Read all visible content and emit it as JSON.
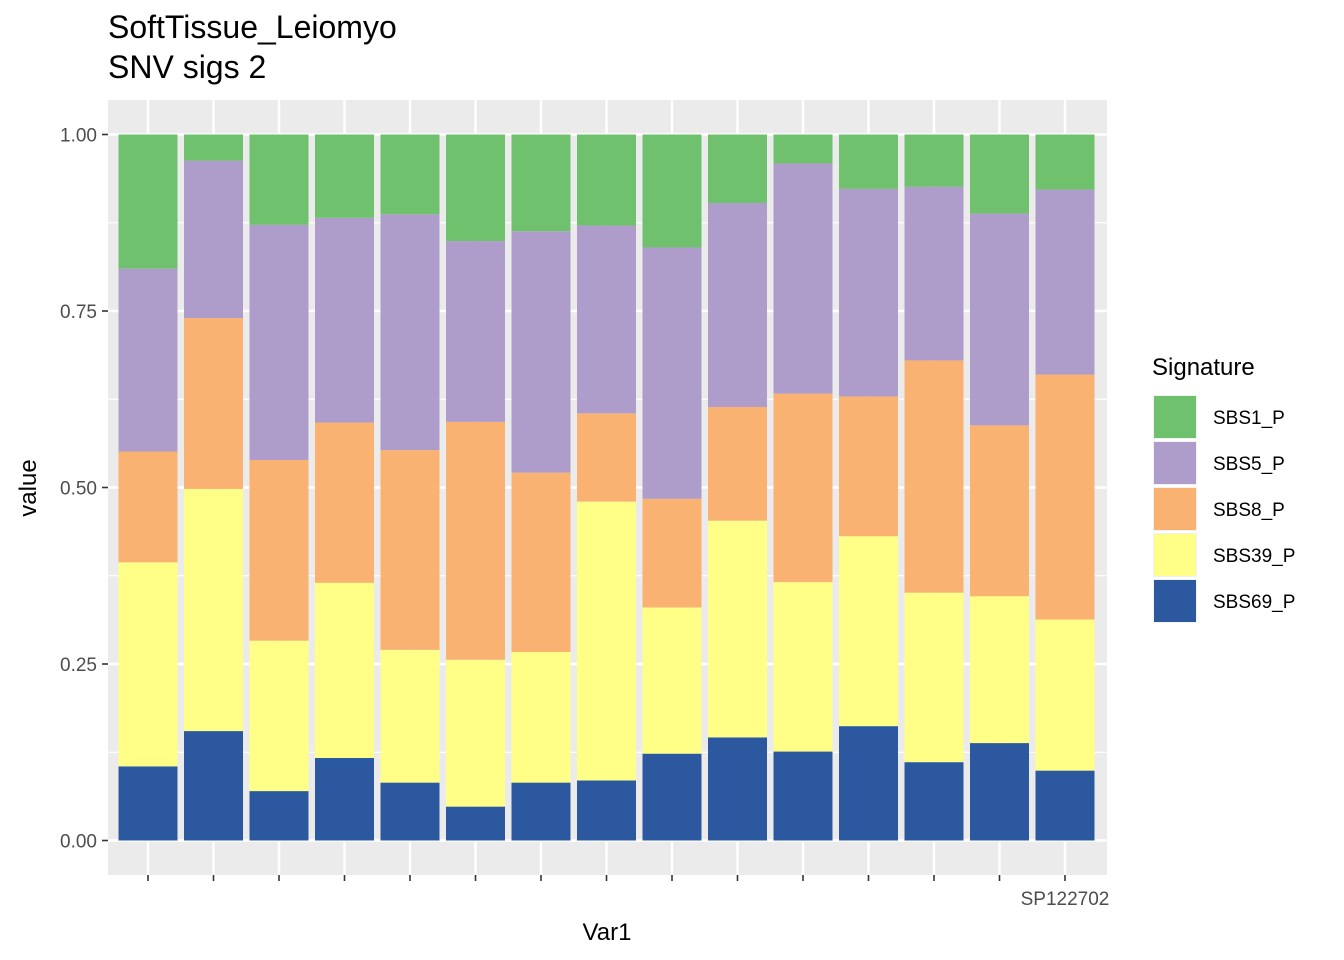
{
  "chart_data": {
    "type": "bar",
    "stacked": true,
    "title": "SoftTissue_Leiomyo",
    "subtitle": "SNV sigs 2",
    "xlabel": "Var1",
    "ylabel": "value",
    "ylim": [
      0,
      1
    ],
    "yticks": [
      "0.00",
      "0.25",
      "0.50",
      "0.75",
      "1.00"
    ],
    "ytick_values": [
      0,
      0.25,
      0.5,
      0.75,
      1.0
    ],
    "grid": true,
    "legend_position": "right",
    "legend_title": "Signature",
    "categories": [
      "",
      "",
      "",
      "",
      "",
      "",
      "",
      "",
      "",
      "",
      "",
      "",
      "",
      "",
      "SP122702"
    ],
    "series": [
      {
        "name": "SBS69_P",
        "color": "#2c58a0",
        "values": [
          0.105,
          0.155,
          0.07,
          0.117,
          0.082,
          0.048,
          0.082,
          0.085,
          0.123,
          0.146,
          0.126,
          0.162,
          0.111,
          0.138,
          0.099
        ]
      },
      {
        "name": "SBS39_P",
        "color": "#ffff88",
        "values": [
          0.289,
          0.343,
          0.213,
          0.248,
          0.188,
          0.208,
          0.185,
          0.395,
          0.207,
          0.307,
          0.24,
          0.269,
          0.24,
          0.208,
          0.214
        ]
      },
      {
        "name": "SBS8_P",
        "color": "#fab273",
        "values": [
          0.157,
          0.242,
          0.256,
          0.227,
          0.283,
          0.337,
          0.254,
          0.125,
          0.154,
          0.161,
          0.267,
          0.198,
          0.329,
          0.242,
          0.347
        ]
      },
      {
        "name": "SBS5_P",
        "color": "#ae9ccb",
        "values": [
          0.259,
          0.223,
          0.333,
          0.29,
          0.334,
          0.256,
          0.342,
          0.266,
          0.356,
          0.289,
          0.326,
          0.294,
          0.246,
          0.3,
          0.262
        ]
      },
      {
        "name": "SBS1_P",
        "color": "#70c16e",
        "values": [
          0.19,
          0.037,
          0.128,
          0.118,
          0.113,
          0.151,
          0.137,
          0.129,
          0.16,
          0.097,
          0.041,
          0.077,
          0.074,
          0.112,
          0.078
        ]
      }
    ],
    "legend_order": [
      "SBS1_P",
      "SBS5_P",
      "SBS8_P",
      "SBS39_P",
      "SBS69_P"
    ]
  }
}
